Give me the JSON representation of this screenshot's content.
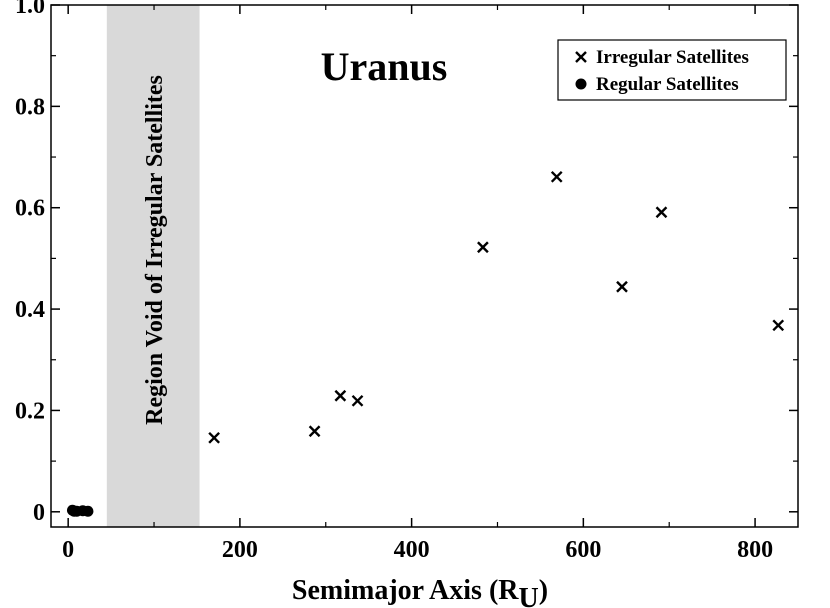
{
  "chart_data": {
    "type": "scatter",
    "title": "Uranus",
    "xlabel": "Semimajor Axis (R",
    "xlabel_sub": "U",
    "xlabel_close": ")",
    "ylabel": "",
    "xlim": [
      -20,
      850
    ],
    "ylim": [
      -0.03,
      1.0
    ],
    "x_ticks": [
      0,
      200,
      400,
      600,
      800
    ],
    "y_ticks": [
      0,
      0.2,
      0.4,
      0.6,
      0.8,
      1.0
    ],
    "x_tick_labels": [
      "0",
      "200",
      "400",
      "600",
      "800"
    ],
    "y_tick_labels": [
      "0",
      "0.2",
      "0.4",
      "0.6",
      "0.8",
      "1.0"
    ],
    "grid": false,
    "legend_position": "top-right",
    "band": {
      "label": "Region Void of Irregular Satellites",
      "x_range": [
        45,
        153
      ],
      "color": "#d9d9d9"
    },
    "series": [
      {
        "name": "Irregular Satellites",
        "marker": "x",
        "points": [
          {
            "x": 170,
            "y": 0.146
          },
          {
            "x": 287,
            "y": 0.159
          },
          {
            "x": 317,
            "y": 0.229
          },
          {
            "x": 337,
            "y": 0.219
          },
          {
            "x": 483,
            "y": 0.522
          },
          {
            "x": 569,
            "y": 0.661
          },
          {
            "x": 645,
            "y": 0.444
          },
          {
            "x": 691,
            "y": 0.591
          },
          {
            "x": 827,
            "y": 0.368
          }
        ]
      },
      {
        "name": "Regular Satellites",
        "marker": "circle",
        "points": [
          {
            "x": 5,
            "y": 0.003
          },
          {
            "x": 7,
            "y": 0.001
          },
          {
            "x": 10,
            "y": 0.001
          },
          {
            "x": 17,
            "y": 0.002
          },
          {
            "x": 23,
            "y": 0.001
          }
        ]
      }
    ]
  }
}
